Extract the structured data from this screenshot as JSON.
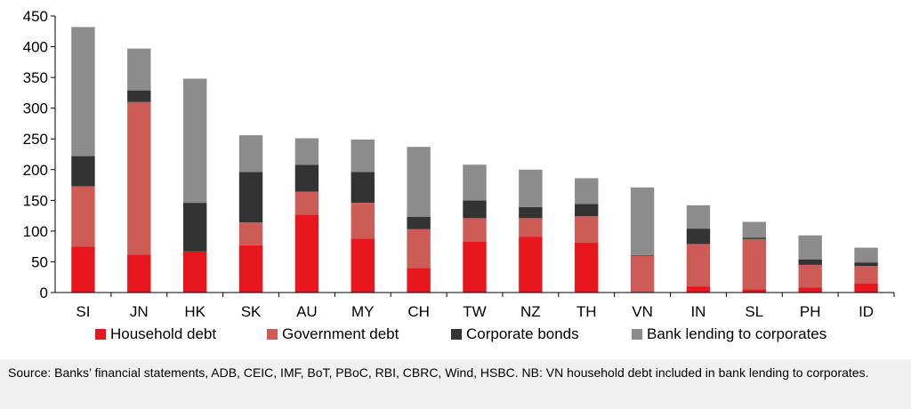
{
  "chart_data": {
    "type": "bar",
    "stacked": true,
    "categories": [
      "SI",
      "JN",
      "HK",
      "SK",
      "AU",
      "MY",
      "CH",
      "TW",
      "NZ",
      "TH",
      "VN",
      "IN",
      "SL",
      "PH",
      "ID"
    ],
    "series": [
      {
        "name": "Household debt",
        "color": "#e8171e",
        "values": [
          75,
          62,
          67,
          77,
          127,
          88,
          40,
          83,
          91,
          81,
          0,
          10,
          5,
          8,
          15
        ]
      },
      {
        "name": "Government debt",
        "color": "#cd5c57",
        "values": [
          98,
          248,
          0,
          37,
          37,
          58,
          63,
          38,
          30,
          43,
          60,
          69,
          82,
          37,
          28
        ]
      },
      {
        "name": "Corporate bonds",
        "color": "#333333",
        "values": [
          49,
          19,
          79,
          82,
          44,
          50,
          20,
          29,
          18,
          20,
          1,
          25,
          2,
          9,
          6
        ]
      },
      {
        "name": "Bank lending to corporates",
        "color": "#8c8c8c",
        "values": [
          210,
          68,
          202,
          60,
          43,
          53,
          114,
          58,
          61,
          42,
          110,
          38,
          26,
          39,
          24
        ]
      }
    ],
    "yticks": [
      0,
      50,
      100,
      150,
      200,
      250,
      300,
      350,
      400,
      450
    ],
    "ylim": [
      0,
      450
    ],
    "grid": false,
    "legend_position": "bottom"
  },
  "source_note": "Source: Banks’ financial statements, ADB, CEIC, IMF, BoT, PBoC, RBI, CBRC, Wind, HSBC. NB: VN household debt included in bank lending to corporates."
}
